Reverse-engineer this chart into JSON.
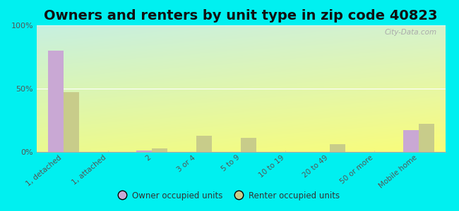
{
  "title": "Owners and renters by unit type in zip code 40823",
  "categories": [
    "1, detached",
    "1, attached",
    "2",
    "3 or 4",
    "5 to 9",
    "10 to 19",
    "20 to 49",
    "50 or more",
    "Mobile home"
  ],
  "owner_values": [
    80,
    0,
    1,
    0,
    0,
    0,
    0,
    0,
    17
  ],
  "renter_values": [
    47,
    0,
    3,
    13,
    11,
    0,
    6,
    0,
    22
  ],
  "owner_color": "#c9a8d4",
  "renter_color": "#c8cc8a",
  "outer_bg": "#00f0f0",
  "ylim": [
    0,
    100
  ],
  "yticks": [
    0,
    50,
    100
  ],
  "ytick_labels": [
    "0%",
    "50%",
    "100%"
  ],
  "legend_owner": "Owner occupied units",
  "legend_renter": "Renter occupied units",
  "bar_width": 0.35,
  "title_fontsize": 14,
  "watermark": "City-Data.com"
}
